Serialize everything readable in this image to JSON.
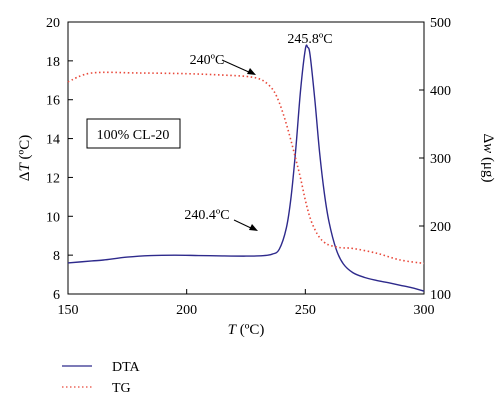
{
  "chart_data": {
    "type": "line",
    "title": "",
    "xlabel": {
      "var": "T",
      "unit": " (ºC)"
    },
    "ylabel_left": {
      "prefix": "Δ",
      "var": "T",
      "unit": " (ºC)"
    },
    "ylabel_right": {
      "prefix": "Δ",
      "var": "w",
      "unit": " (μg)"
    },
    "xlim": [
      150,
      300
    ],
    "ylim_left": [
      6,
      20
    ],
    "ylim_right": [
      100,
      500
    ],
    "xticks": [
      "150",
      "200",
      "250",
      "300"
    ],
    "yticks_left": [
      "6",
      "8",
      "10",
      "12",
      "14",
      "16",
      "18",
      "20"
    ],
    "yticks_right": [
      "100",
      "200",
      "300",
      "400",
      "500"
    ],
    "annotations": {
      "sample": "100% CL-20",
      "dta_peak": "245.8ºC",
      "dta_onset": "240.4ºC",
      "tg_onset": "240ºC"
    },
    "legend_placement": "bottom-left",
    "series": [
      {
        "name": "DTA",
        "axis": "left",
        "color": "#2e2a8c",
        "style": "solid",
        "x": [
          150,
          160,
          165,
          175,
          185,
          195,
          205,
          215,
          225,
          232,
          236,
          239,
          242,
          244,
          246,
          248,
          250,
          251,
          252,
          254,
          256,
          258,
          260,
          263,
          266,
          270,
          275,
          280,
          285,
          290,
          295,
          300
        ],
        "y": [
          7.6,
          7.7,
          7.75,
          7.9,
          7.98,
          8.0,
          7.98,
          7.96,
          7.95,
          7.97,
          8.05,
          8.3,
          9.4,
          11.0,
          13.5,
          16.5,
          18.6,
          18.7,
          18.3,
          16.0,
          13.3,
          11.2,
          9.7,
          8.3,
          7.55,
          7.1,
          6.85,
          6.7,
          6.58,
          6.45,
          6.32,
          6.15
        ]
      },
      {
        "name": "TG",
        "axis": "right",
        "color": "#e8493b",
        "style": "dotted",
        "x": [
          150,
          160,
          180,
          200,
          215,
          225,
          230,
          233,
          236,
          238,
          240,
          242,
          244,
          246,
          248,
          250,
          252,
          254,
          256,
          258,
          260,
          265,
          270,
          280,
          290,
          300
        ],
        "y": [
          412,
          425,
          425,
          424,
          422,
          420,
          417,
          412,
          402,
          390,
          372,
          350,
          325,
          298,
          270,
          238,
          212,
          195,
          183,
          176,
          172,
          168,
          167,
          160,
          150,
          145
        ]
      }
    ]
  }
}
